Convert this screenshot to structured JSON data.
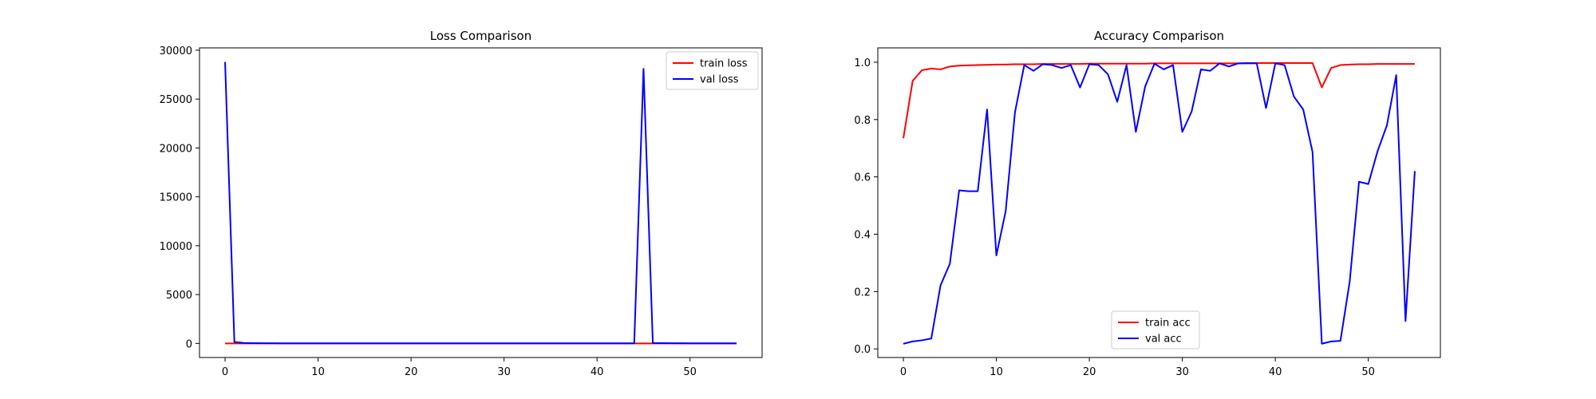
{
  "chart_data": [
    {
      "type": "line",
      "title": "Loss Comparison",
      "xlabel": "",
      "ylabel": "",
      "x": [
        0,
        1,
        2,
        3,
        4,
        5,
        6,
        7,
        8,
        9,
        10,
        11,
        12,
        13,
        14,
        15,
        16,
        17,
        18,
        19,
        20,
        21,
        22,
        23,
        24,
        25,
        26,
        27,
        28,
        29,
        30,
        31,
        32,
        33,
        34,
        35,
        36,
        37,
        38,
        39,
        40,
        41,
        42,
        43,
        44,
        45,
        46,
        47,
        48,
        49,
        50,
        51,
        52,
        53,
        54,
        55
      ],
      "xlim": [
        -2.75,
        57.75
      ],
      "ylim": [
        -1440,
        30240
      ],
      "xticks": [
        0,
        10,
        20,
        30,
        40,
        50
      ],
      "xtick_labels": [
        "0",
        "10",
        "20",
        "30",
        "40",
        "50"
      ],
      "yticks": [
        0,
        5000,
        10000,
        15000,
        20000,
        25000,
        30000
      ],
      "ytick_labels": [
        "0",
        "5000",
        "10000",
        "15000",
        "20000",
        "25000",
        "30000"
      ],
      "legend_position": "upper right",
      "series": [
        {
          "name": "train loss",
          "color": "#ff0000",
          "values": [
            0.6,
            0.2,
            0.1,
            0.08,
            0.07,
            0.06,
            0.05,
            0.05,
            0.04,
            0.04,
            0.04,
            0.03,
            0.03,
            0.03,
            0.03,
            0.03,
            0.03,
            0.02,
            0.02,
            0.02,
            0.02,
            0.02,
            0.02,
            0.02,
            0.02,
            0.02,
            0.02,
            0.02,
            0.02,
            0.02,
            0.02,
            0.02,
            0.02,
            0.02,
            0.02,
            0.02,
            0.02,
            0.02,
            0.02,
            0.02,
            0.02,
            0.02,
            0.02,
            0.02,
            0.02,
            0.3,
            0.1,
            0.05,
            0.04,
            0.03,
            0.03,
            0.03,
            0.03,
            0.03,
            0.03,
            0.03
          ]
        },
        {
          "name": "val loss",
          "color": "#0000ff",
          "values": [
            28800,
            150,
            50,
            30,
            20,
            15,
            10,
            10,
            8,
            8,
            8,
            6,
            5,
            5,
            5,
            5,
            5,
            5,
            5,
            5,
            5,
            5,
            5,
            5,
            5,
            5,
            5,
            5,
            5,
            5,
            5,
            5,
            5,
            5,
            5,
            5,
            5,
            5,
            5,
            5,
            5,
            5,
            5,
            5,
            5,
            28100,
            40,
            30,
            20,
            15,
            10,
            10,
            8,
            8,
            8,
            8
          ]
        }
      ]
    },
    {
      "type": "line",
      "title": "Accuracy Comparison",
      "xlabel": "",
      "ylabel": "",
      "x": [
        0,
        1,
        2,
        3,
        4,
        5,
        6,
        7,
        8,
        9,
        10,
        11,
        12,
        13,
        14,
        15,
        16,
        17,
        18,
        19,
        20,
        21,
        22,
        23,
        24,
        25,
        26,
        27,
        28,
        29,
        30,
        31,
        32,
        33,
        34,
        35,
        36,
        37,
        38,
        39,
        40,
        41,
        42,
        43,
        44,
        45,
        46,
        47,
        48,
        49,
        50,
        51,
        52,
        53,
        54,
        55
      ],
      "xlim": [
        -2.75,
        57.75
      ],
      "ylim": [
        -0.03,
        1.05
      ],
      "xticks": [
        0,
        10,
        20,
        30,
        40,
        50
      ],
      "xtick_labels": [
        "0",
        "10",
        "20",
        "30",
        "40",
        "50"
      ],
      "yticks": [
        0.0,
        0.2,
        0.4,
        0.6,
        0.8,
        1.0
      ],
      "ytick_labels": [
        "0.0",
        "0.2",
        "0.4",
        "0.6",
        "0.8",
        "1.0"
      ],
      "legend_position": "lower center",
      "series": [
        {
          "name": "train acc",
          "color": "#ff0000",
          "values": [
            0.735,
            0.935,
            0.972,
            0.978,
            0.975,
            0.985,
            0.988,
            0.989,
            0.99,
            0.991,
            0.992,
            0.992,
            0.993,
            0.993,
            0.993,
            0.994,
            0.994,
            0.994,
            0.994,
            0.994,
            0.995,
            0.995,
            0.995,
            0.995,
            0.995,
            0.995,
            0.995,
            0.996,
            0.996,
            0.996,
            0.996,
            0.996,
            0.996,
            0.996,
            0.996,
            0.996,
            0.996,
            0.997,
            0.997,
            0.997,
            0.997,
            0.997,
            0.997,
            0.997,
            0.997,
            0.912,
            0.98,
            0.99,
            0.992,
            0.993,
            0.993,
            0.994,
            0.994,
            0.994,
            0.994,
            0.994
          ]
        },
        {
          "name": "val acc",
          "color": "#0000ff",
          "values": [
            0.018,
            0.026,
            0.03,
            0.036,
            0.222,
            0.297,
            0.553,
            0.55,
            0.55,
            0.835,
            0.326,
            0.48,
            0.825,
            0.99,
            0.97,
            0.993,
            0.99,
            0.98,
            0.99,
            0.912,
            0.993,
            0.99,
            0.958,
            0.862,
            0.99,
            0.757,
            0.915,
            0.995,
            0.975,
            0.99,
            0.757,
            0.828,
            0.975,
            0.97,
            0.996,
            0.985,
            0.996,
            0.996,
            0.996,
            0.84,
            0.996,
            0.99,
            0.88,
            0.835,
            0.687,
            0.018,
            0.026,
            0.028,
            0.235,
            0.583,
            0.575,
            0.69,
            0.78,
            0.955,
            0.097,
            0.62
          ]
        }
      ]
    }
  ]
}
